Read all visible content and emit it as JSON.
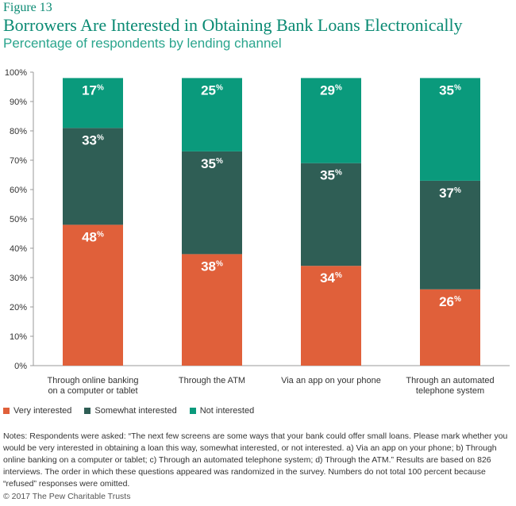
{
  "figure_label": "Figure 13",
  "title": "Borrowers Are Interested in Obtaining Bank Loans Electronically",
  "subtitle": "Percentage of respondents by lending channel",
  "colors": {
    "very": "#e0603a",
    "somewhat": "#2f5e55",
    "not": "#0a9a7c",
    "axis": "#999999"
  },
  "chart_data": {
    "type": "bar",
    "stacked": true,
    "categories": [
      [
        "Through online banking",
        "on a computer or tablet"
      ],
      [
        "Through the ATM"
      ],
      [
        "Via an app on your phone"
      ],
      [
        "Through an automated",
        "telephone system"
      ]
    ],
    "series": [
      {
        "name": "Very interested",
        "values": [
          48,
          38,
          34,
          26
        ]
      },
      {
        "name": "Somewhat interested",
        "values": [
          33,
          35,
          35,
          37
        ]
      },
      {
        "name": "Not interested",
        "values": [
          17,
          25,
          29,
          35
        ]
      }
    ],
    "ylim": [
      0,
      100
    ],
    "yticks": [
      "0%",
      "10%",
      "20%",
      "30%",
      "40%",
      "50%",
      "60%",
      "70%",
      "80%",
      "90%",
      "100%"
    ],
    "value_suffix": "%",
    "legend_position": "bottom-left"
  },
  "legend": [
    {
      "label": "Very interested",
      "color": "#e0603a"
    },
    {
      "label": "Somewhat interested",
      "color": "#2f5e55"
    },
    {
      "label": "Not interested",
      "color": "#0a9a7c"
    }
  ],
  "notes": "Notes: Respondents were asked: “The next few screens are some ways that your bank could offer small loans. Please mark whether you would be very interested in obtaining a loan this way, somewhat interested, or not interested. a) Via an app on your phone; b) Through online banking on a computer or tablet; c) Through an automated telephone system; d) Through the ATM.” Results are based on 826 interviews. The order in which these questions appeared was randomized in the survey. Numbers do not total 100 percent because “refused” responses were omitted.",
  "copyright": "© 2017 The Pew Charitable Trusts"
}
